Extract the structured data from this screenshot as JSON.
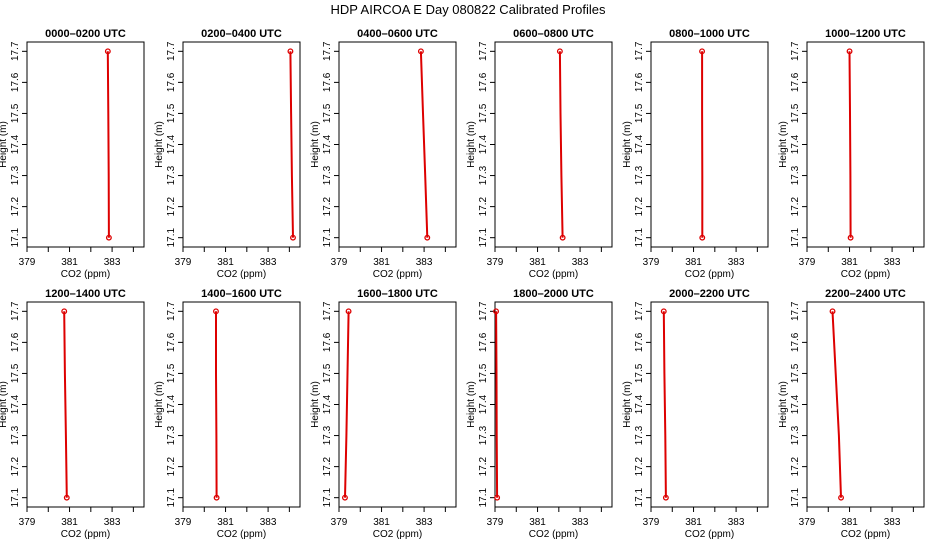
{
  "title": "HDP AIRCOA E  Day 080822  Calibrated Profiles",
  "colors": {
    "profile": "#dd0000",
    "axis": "#000000"
  },
  "chart_data": [
    {
      "type": "line",
      "title": "0000–0200 UTC",
      "xlabel": "CO2 (ppm)",
      "ylabel": "Height (m)",
      "xlim": [
        379,
        384.5
      ],
      "ylim": [
        17.07,
        17.73
      ],
      "xticks": [
        379,
        381,
        383
      ],
      "yticks": [
        17.1,
        17.2,
        17.3,
        17.4,
        17.5,
        17.6,
        17.7
      ],
      "series": [
        {
          "x": [
            382.8,
            382.82,
            382.84,
            382.85
          ],
          "y": [
            17.7,
            17.5,
            17.3,
            17.1
          ]
        }
      ],
      "endpoints": [
        {
          "x": 382.8,
          "y": 17.7
        },
        {
          "x": 382.85,
          "y": 17.1
        }
      ]
    },
    {
      "type": "line",
      "title": "0200–0400 UTC",
      "xlabel": "CO2 (ppm)",
      "ylabel": "Height (m)",
      "xlim": [
        379,
        384.5
      ],
      "ylim": [
        17.07,
        17.73
      ],
      "xticks": [
        379,
        381,
        383
      ],
      "yticks": [
        17.1,
        17.2,
        17.3,
        17.4,
        17.5,
        17.6,
        17.7
      ],
      "series": [
        {
          "x": [
            384.05,
            384.08,
            384.12,
            384.17
          ],
          "y": [
            17.7,
            17.5,
            17.3,
            17.1
          ]
        }
      ],
      "endpoints": [
        {
          "x": 384.05,
          "y": 17.7
        },
        {
          "x": 384.17,
          "y": 17.1
        }
      ]
    },
    {
      "type": "line",
      "title": "0400–0600 UTC",
      "xlabel": "CO2 (ppm)",
      "ylabel": "Height (m)",
      "xlim": [
        379,
        384.5
      ],
      "ylim": [
        17.07,
        17.73
      ],
      "xticks": [
        379,
        381,
        383
      ],
      "yticks": [
        17.1,
        17.2,
        17.3,
        17.4,
        17.5,
        17.6,
        17.7
      ],
      "series": [
        {
          "x": [
            382.85,
            382.95,
            383.05,
            383.15
          ],
          "y": [
            17.7,
            17.5,
            17.3,
            17.1
          ]
        }
      ],
      "endpoints": [
        {
          "x": 382.85,
          "y": 17.7
        },
        {
          "x": 383.15,
          "y": 17.1
        }
      ]
    },
    {
      "type": "line",
      "title": "0600–0800 UTC",
      "xlabel": "CO2 (ppm)",
      "ylabel": "Height (m)",
      "xlim": [
        379,
        384.5
      ],
      "ylim": [
        17.07,
        17.73
      ],
      "xticks": [
        379,
        381,
        383
      ],
      "yticks": [
        17.1,
        17.2,
        17.3,
        17.4,
        17.5,
        17.6,
        17.7
      ],
      "series": [
        {
          "x": [
            382.05,
            382.08,
            382.12,
            382.18
          ],
          "y": [
            17.7,
            17.5,
            17.3,
            17.1
          ]
        }
      ],
      "endpoints": [
        {
          "x": 382.05,
          "y": 17.7
        },
        {
          "x": 382.18,
          "y": 17.1
        }
      ]
    },
    {
      "type": "line",
      "title": "0800–1000 UTC",
      "xlabel": "CO2 (ppm)",
      "ylabel": "Height (m)",
      "xlim": [
        379,
        384.5
      ],
      "ylim": [
        17.07,
        17.73
      ],
      "xticks": [
        379,
        381,
        383
      ],
      "yticks": [
        17.1,
        17.2,
        17.3,
        17.4,
        17.5,
        17.6,
        17.7
      ],
      "series": [
        {
          "x": [
            381.4,
            381.4,
            381.41,
            381.41
          ],
          "y": [
            17.7,
            17.5,
            17.3,
            17.1
          ]
        }
      ],
      "endpoints": [
        {
          "x": 381.4,
          "y": 17.7
        },
        {
          "x": 381.41,
          "y": 17.1
        }
      ]
    },
    {
      "type": "line",
      "title": "1000–1200 UTC",
      "xlabel": "CO2 (ppm)",
      "ylabel": "Height (m)",
      "xlim": [
        379,
        384.5
      ],
      "ylim": [
        17.07,
        17.73
      ],
      "xticks": [
        379,
        381,
        383
      ],
      "yticks": [
        17.1,
        17.2,
        17.3,
        17.4,
        17.5,
        17.6,
        17.7
      ],
      "series": [
        {
          "x": [
            381.0,
            381.02,
            381.04,
            381.05
          ],
          "y": [
            17.7,
            17.5,
            17.3,
            17.1
          ]
        }
      ],
      "endpoints": [
        {
          "x": 381.0,
          "y": 17.7
        },
        {
          "x": 381.05,
          "y": 17.1
        }
      ]
    },
    {
      "type": "line",
      "title": "1200–1400 UTC",
      "xlabel": "CO2 (ppm)",
      "ylabel": "Height (m)",
      "xlim": [
        379,
        384.5
      ],
      "ylim": [
        17.07,
        17.73
      ],
      "xticks": [
        379,
        381,
        383
      ],
      "yticks": [
        17.1,
        17.2,
        17.3,
        17.4,
        17.5,
        17.6,
        17.7
      ],
      "series": [
        {
          "x": [
            380.75,
            380.78,
            380.83,
            380.87
          ],
          "y": [
            17.7,
            17.5,
            17.3,
            17.1
          ]
        }
      ],
      "endpoints": [
        {
          "x": 380.75,
          "y": 17.7
        },
        {
          "x": 380.87,
          "y": 17.1
        }
      ]
    },
    {
      "type": "line",
      "title": "1400–1600 UTC",
      "xlabel": "CO2 (ppm)",
      "ylabel": "Height (m)",
      "xlim": [
        379,
        384.5
      ],
      "ylim": [
        17.07,
        17.73
      ],
      "xticks": [
        379,
        381,
        383
      ],
      "yticks": [
        17.1,
        17.2,
        17.3,
        17.4,
        17.5,
        17.6,
        17.7
      ],
      "series": [
        {
          "x": [
            380.55,
            380.55,
            380.57,
            380.58
          ],
          "y": [
            17.7,
            17.5,
            17.3,
            17.1
          ]
        }
      ],
      "endpoints": [
        {
          "x": 380.55,
          "y": 17.7
        },
        {
          "x": 380.58,
          "y": 17.1
        }
      ]
    },
    {
      "type": "line",
      "title": "1600–1800 UTC",
      "xlabel": "CO2 (ppm)",
      "ylabel": "Height (m)",
      "xlim": [
        379,
        384.5
      ],
      "ylim": [
        17.07,
        17.73
      ],
      "xticks": [
        379,
        381,
        383
      ],
      "yticks": [
        17.1,
        17.2,
        17.3,
        17.4,
        17.5,
        17.6,
        17.7
      ],
      "series": [
        {
          "x": [
            379.45,
            379.4,
            379.35,
            379.28
          ],
          "y": [
            17.7,
            17.5,
            17.3,
            17.1
          ]
        }
      ],
      "endpoints": [
        {
          "x": 379.45,
          "y": 17.7
        },
        {
          "x": 379.28,
          "y": 17.1
        }
      ]
    },
    {
      "type": "line",
      "title": "1800–2000 UTC",
      "xlabel": "CO2 (ppm)",
      "ylabel": "Height (m)",
      "xlim": [
        379,
        384.5
      ],
      "ylim": [
        17.07,
        17.73
      ],
      "xticks": [
        379,
        381,
        383
      ],
      "yticks": [
        17.1,
        17.2,
        17.3,
        17.4,
        17.5,
        17.6,
        17.7
      ],
      "series": [
        {
          "x": [
            379.05,
            379.07,
            379.08,
            379.1
          ],
          "y": [
            17.7,
            17.5,
            17.3,
            17.1
          ]
        }
      ],
      "endpoints": [
        {
          "x": 379.05,
          "y": 17.7
        },
        {
          "x": 379.1,
          "y": 17.1
        }
      ]
    },
    {
      "type": "line",
      "title": "2000–2200 UTC",
      "xlabel": "CO2 (ppm)",
      "ylabel": "Height (m)",
      "xlim": [
        379,
        384.5
      ],
      "ylim": [
        17.07,
        17.73
      ],
      "xticks": [
        379,
        381,
        383
      ],
      "yticks": [
        17.1,
        17.2,
        17.3,
        17.4,
        17.5,
        17.6,
        17.7
      ],
      "series": [
        {
          "x": [
            379.6,
            379.63,
            379.67,
            379.7
          ],
          "y": [
            17.7,
            17.5,
            17.3,
            17.1
          ]
        }
      ],
      "endpoints": [
        {
          "x": 379.6,
          "y": 17.7
        },
        {
          "x": 379.7,
          "y": 17.1
        }
      ]
    },
    {
      "type": "line",
      "title": "2200–2400 UTC",
      "xlabel": "CO2 (ppm)",
      "ylabel": "Height (m)",
      "xlim": [
        379,
        384.5
      ],
      "ylim": [
        17.07,
        17.73
      ],
      "xticks": [
        379,
        381,
        383
      ],
      "yticks": [
        17.1,
        17.2,
        17.3,
        17.4,
        17.5,
        17.6,
        17.7
      ],
      "series": [
        {
          "x": [
            380.2,
            380.35,
            380.5,
            380.6
          ],
          "y": [
            17.7,
            17.5,
            17.3,
            17.1
          ]
        }
      ],
      "endpoints": [
        {
          "x": 380.2,
          "y": 17.7
        },
        {
          "x": 380.6,
          "y": 17.1
        }
      ]
    }
  ]
}
